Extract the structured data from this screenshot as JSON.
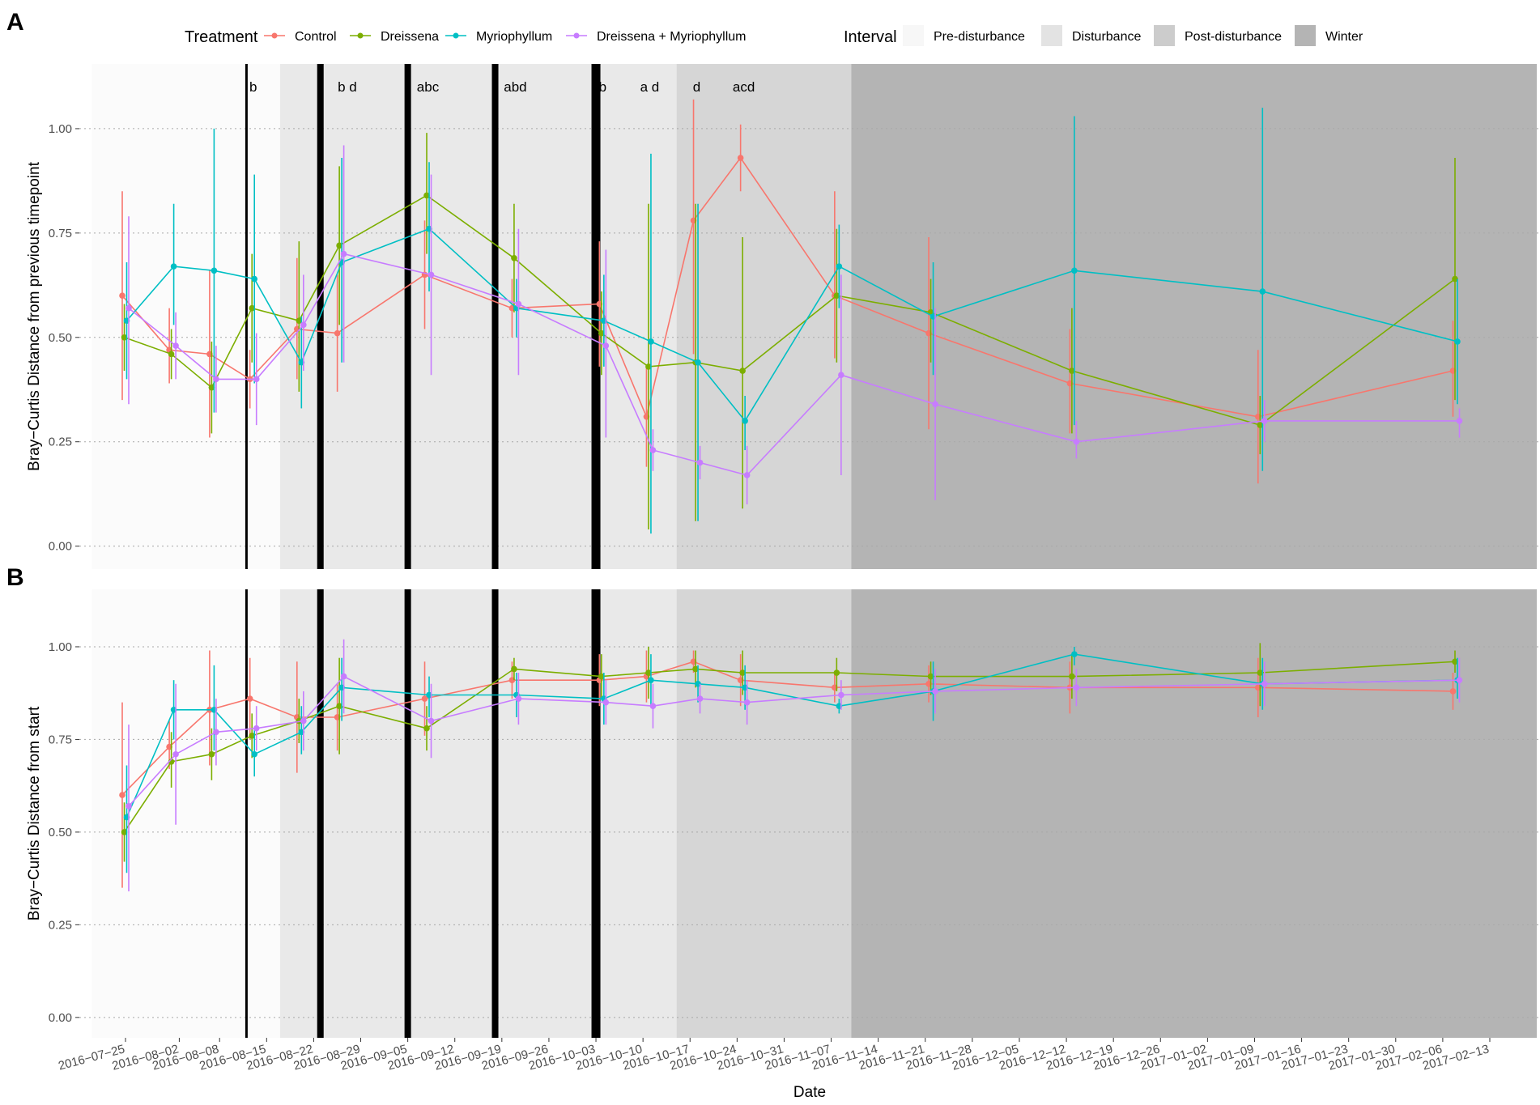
{
  "chart_data": {
    "type": "line",
    "title": "",
    "xlabel": "Date",
    "x_tick_labels": [
      "2016-07-25",
      "2016-08-02",
      "2016-08-08",
      "2016-08-15",
      "2016-08-22",
      "2016-08-29",
      "2016-09-05",
      "2016-09-12",
      "2016-09-19",
      "2016-09-26",
      "2016-10-03",
      "2016-10-10",
      "2016-10-17",
      "2016-10-24",
      "2016-10-31",
      "2016-11-07",
      "2016-11-14",
      "2016-11-21",
      "2016-11-28",
      "2016-12-05",
      "2016-12-12",
      "2016-12-19",
      "2016-12-26",
      "2017-01-02",
      "2017-01-09",
      "2017-01-16",
      "2017-01-23",
      "2017-01-30",
      "2017-02-06",
      "2017-02-13"
    ],
    "y_ticks": [
      "0.00",
      "0.25",
      "0.50",
      "0.75",
      "1.00"
    ],
    "ylim": [
      -0.055,
      1.155
    ],
    "grid": "horizontal dotted",
    "legend_placement": "top",
    "treatment_legend": {
      "title": "Treatment",
      "entries": [
        {
          "name": "Control",
          "color": "#F8766D"
        },
        {
          "name": "Dreissena",
          "color": "#7CAE00"
        },
        {
          "name": "Myriophyllum",
          "color": "#00BFC4"
        },
        {
          "name": "Dreissena + Myriophyllum",
          "color": "#C77CFF"
        }
      ]
    },
    "interval_legend": {
      "title": "Interval",
      "entries": [
        {
          "name": "Pre-disturbance",
          "color": "#F7F7F7"
        },
        {
          "name": "Disturbance",
          "color": "#E3E3E3"
        },
        {
          "name": "Post-disturbance",
          "color": "#CCCCCC"
        },
        {
          "name": "Winter",
          "color": "#B4B4B4"
        }
      ]
    },
    "intervals": [
      {
        "name": "Pre-disturbance",
        "from": "2016-07-20",
        "to": "2016-08-17",
        "color": "#FBFBFB"
      },
      {
        "name": "Disturbance",
        "from": "2016-08-17",
        "to": "2016-10-15",
        "color": "#E9E9E9"
      },
      {
        "name": "Post-disturbance",
        "from": "2016-10-15",
        "to": "2016-11-10",
        "color": "#D6D6D6"
      },
      {
        "name": "Winter",
        "from": "2016-11-10",
        "to": "2017-02-20",
        "color": "#B4B4B4"
      }
    ],
    "disturbance_events": [
      {
        "date": "2016-08-12",
        "weight": "thin"
      },
      {
        "date": "2016-08-23",
        "weight": "thick"
      },
      {
        "date": "2016-09-05",
        "weight": "thick"
      },
      {
        "date": "2016-09-18",
        "weight": "thick"
      },
      {
        "date": "2016-10-03",
        "weight": "thicker"
      }
    ],
    "panels": [
      {
        "tag": "A",
        "ylabel": "Bray−Curtis Distance from previous timepoint",
        "annotations": [
          {
            "date": "2016-08-13",
            "text": "b"
          },
          {
            "date": "2016-08-27",
            "text": "b d"
          },
          {
            "date": "2016-09-08",
            "text": "abc"
          },
          {
            "date": "2016-09-21",
            "text": "abd"
          },
          {
            "date": "2016-10-04",
            "text": "b"
          },
          {
            "date": "2016-10-11",
            "text": "a  d"
          },
          {
            "date": "2016-10-18",
            "text": "d"
          },
          {
            "date": "2016-10-25",
            "text": "acd"
          }
        ],
        "series": [
          {
            "name": "Control",
            "color": "#F8766D",
            "x": [
              "2016-07-25",
              "2016-08-01",
              "2016-08-07",
              "2016-08-13",
              "2016-08-20",
              "2016-08-26",
              "2016-09-08",
              "2016-09-21",
              "2016-10-04",
              "2016-10-11",
              "2016-10-18",
              "2016-10-25",
              "2016-11-08",
              "2016-11-22",
              "2016-12-13",
              "2017-01-10",
              "2017-02-08"
            ],
            "y": [
              0.6,
              0.47,
              0.46,
              0.4,
              0.52,
              0.51,
              0.65,
              0.57,
              0.58,
              0.31,
              0.78,
              0.93,
              0.6,
              0.51,
              0.39,
              0.31,
              0.42
            ],
            "lo": [
              0.35,
              0.39,
              0.26,
              0.33,
              0.4,
              0.37,
              0.52,
              0.5,
              0.43,
              0.19,
              0.46,
              0.85,
              0.45,
              0.28,
              0.27,
              0.15,
              0.31
            ],
            "hi": [
              0.85,
              0.57,
              0.66,
              0.47,
              0.69,
              0.65,
              0.78,
              0.64,
              0.73,
              0.43,
              1.07,
              1.01,
              0.85,
              0.74,
              0.52,
              0.47,
              0.54
            ]
          },
          {
            "name": "Dreissena",
            "color": "#7CAE00",
            "x": [
              "2016-07-25",
              "2016-08-01",
              "2016-08-07",
              "2016-08-13",
              "2016-08-20",
              "2016-08-26",
              "2016-09-08",
              "2016-09-21",
              "2016-10-04",
              "2016-10-11",
              "2016-10-18",
              "2016-10-25",
              "2016-11-08",
              "2016-11-22",
              "2016-12-13",
              "2017-01-10",
              "2017-02-08"
            ],
            "y": [
              0.5,
              0.46,
              0.38,
              0.57,
              0.54,
              0.72,
              0.84,
              0.69,
              0.51,
              0.43,
              0.44,
              0.42,
              0.6,
              0.56,
              0.42,
              0.29,
              0.64
            ],
            "lo": [
              0.42,
              0.4,
              0.27,
              0.44,
              0.37,
              0.53,
              0.7,
              0.56,
              0.41,
              0.04,
              0.06,
              0.09,
              0.44,
              0.44,
              0.27,
              0.22,
              0.35
            ],
            "hi": [
              0.58,
              0.52,
              0.49,
              0.7,
              0.73,
              0.91,
              0.99,
              0.82,
              0.61,
              0.82,
              0.82,
              0.74,
              0.76,
              0.64,
              0.57,
              0.36,
              0.93
            ]
          },
          {
            "name": "Myriophyllum",
            "color": "#00BFC4",
            "x": [
              "2016-07-25",
              "2016-08-01",
              "2016-08-07",
              "2016-08-13",
              "2016-08-20",
              "2016-08-26",
              "2016-09-08",
              "2016-09-21",
              "2016-10-04",
              "2016-10-11",
              "2016-10-18",
              "2016-10-25",
              "2016-11-08",
              "2016-11-22",
              "2016-12-13",
              "2017-01-10",
              "2017-02-08"
            ],
            "y": [
              0.54,
              0.67,
              0.66,
              0.64,
              0.44,
              0.68,
              0.76,
              0.57,
              0.54,
              0.49,
              0.44,
              0.3,
              0.67,
              0.55,
              0.66,
              0.61,
              0.49
            ],
            "lo": [
              0.4,
              0.53,
              0.32,
              0.39,
              0.33,
              0.44,
              0.61,
              0.5,
              0.43,
              0.03,
              0.06,
              0.23,
              0.57,
              0.41,
              0.29,
              0.18,
              0.34
            ],
            "hi": [
              0.68,
              0.82,
              1.0,
              0.89,
              0.55,
              0.93,
              0.92,
              0.64,
              0.65,
              0.94,
              0.82,
              0.36,
              0.77,
              0.68,
              1.03,
              1.05,
              0.64
            ]
          },
          {
            "name": "Dreissena + Myriophyllum",
            "color": "#C77CFF",
            "x": [
              "2016-07-25",
              "2016-08-01",
              "2016-08-07",
              "2016-08-13",
              "2016-08-20",
              "2016-08-26",
              "2016-09-08",
              "2016-09-21",
              "2016-10-04",
              "2016-10-11",
              "2016-10-18",
              "2016-10-25",
              "2016-11-08",
              "2016-11-22",
              "2016-12-13",
              "2017-01-10",
              "2017-02-08"
            ],
            "y": [
              0.57,
              0.48,
              0.4,
              0.4,
              0.53,
              0.7,
              0.65,
              0.58,
              0.48,
              0.23,
              0.2,
              0.17,
              0.41,
              0.34,
              0.25,
              0.3,
              0.3
            ],
            "lo": [
              0.34,
              0.4,
              0.32,
              0.29,
              0.42,
              0.44,
              0.41,
              0.41,
              0.26,
              0.18,
              0.16,
              0.1,
              0.17,
              0.11,
              0.21,
              0.25,
              0.26
            ],
            "hi": [
              0.79,
              0.56,
              0.48,
              0.51,
              0.65,
              0.96,
              0.89,
              0.76,
              0.71,
              0.28,
              0.24,
              0.24,
              0.65,
              0.57,
              0.3,
              0.35,
              0.33
            ]
          }
        ]
      },
      {
        "tag": "B",
        "ylabel": "Bray−Curtis Distance from start",
        "annotations": [],
        "series": [
          {
            "name": "Control",
            "color": "#F8766D",
            "x": [
              "2016-07-25",
              "2016-08-01",
              "2016-08-07",
              "2016-08-13",
              "2016-08-20",
              "2016-08-26",
              "2016-09-08",
              "2016-09-21",
              "2016-10-04",
              "2016-10-11",
              "2016-10-18",
              "2016-10-25",
              "2016-11-08",
              "2016-11-22",
              "2016-12-13",
              "2017-01-10",
              "2017-02-08"
            ],
            "y": [
              0.6,
              0.73,
              0.83,
              0.86,
              0.81,
              0.81,
              0.86,
              0.91,
              0.91,
              0.92,
              0.96,
              0.91,
              0.89,
              0.9,
              0.89,
              0.89,
              0.88
            ],
            "lo": [
              0.35,
              0.67,
              0.68,
              0.75,
              0.66,
              0.72,
              0.76,
              0.86,
              0.84,
              0.85,
              0.93,
              0.84,
              0.85,
              0.85,
              0.82,
              0.81,
              0.83
            ],
            "hi": [
              0.85,
              0.8,
              0.99,
              0.97,
              0.96,
              0.9,
              0.96,
              0.96,
              0.98,
              0.99,
              0.99,
              0.98,
              0.93,
              0.95,
              0.96,
              0.97,
              0.93
            ]
          },
          {
            "name": "Dreissena",
            "color": "#7CAE00",
            "x": [
              "2016-07-25",
              "2016-08-01",
              "2016-08-07",
              "2016-08-13",
              "2016-08-20",
              "2016-08-26",
              "2016-09-08",
              "2016-09-21",
              "2016-10-04",
              "2016-10-11",
              "2016-10-18",
              "2016-10-25",
              "2016-11-08",
              "2016-11-22",
              "2016-12-13",
              "2017-01-10",
              "2017-02-08"
            ],
            "y": [
              0.5,
              0.69,
              0.71,
              0.76,
              0.8,
              0.84,
              0.78,
              0.94,
              0.92,
              0.93,
              0.94,
              0.93,
              0.93,
              0.92,
              0.92,
              0.93,
              0.96
            ],
            "lo": [
              0.42,
              0.62,
              0.64,
              0.7,
              0.74,
              0.71,
              0.72,
              0.91,
              0.86,
              0.86,
              0.89,
              0.87,
              0.88,
              0.87,
              0.86,
              0.84,
              0.93
            ],
            "hi": [
              0.58,
              0.77,
              0.78,
              0.82,
              0.86,
              0.97,
              0.84,
              0.97,
              0.98,
              1.0,
              0.99,
              0.99,
              0.97,
              0.96,
              0.98,
              1.01,
              0.99
            ]
          },
          {
            "name": "Myriophyllum",
            "color": "#00BFC4",
            "x": [
              "2016-07-25",
              "2016-08-01",
              "2016-08-07",
              "2016-08-13",
              "2016-08-20",
              "2016-08-26",
              "2016-09-08",
              "2016-09-21",
              "2016-10-04",
              "2016-10-11",
              "2016-10-18",
              "2016-10-25",
              "2016-11-08",
              "2016-11-22",
              "2016-12-13",
              "2017-01-10",
              "2017-02-08"
            ],
            "y": [
              0.54,
              0.83,
              0.83,
              0.71,
              0.77,
              0.89,
              0.87,
              0.87,
              0.86,
              0.91,
              0.9,
              0.89,
              0.84,
              0.88,
              0.98,
              0.9,
              0.91
            ],
            "lo": [
              0.39,
              0.75,
              0.72,
              0.65,
              0.71,
              0.8,
              0.81,
              0.81,
              0.79,
              0.84,
              0.85,
              0.83,
              0.82,
              0.8,
              0.95,
              0.83,
              0.86
            ],
            "hi": [
              0.68,
              0.91,
              0.95,
              0.78,
              0.84,
              0.97,
              0.92,
              0.93,
              0.93,
              0.98,
              0.95,
              0.95,
              0.86,
              0.96,
              1.0,
              0.97,
              0.97
            ]
          },
          {
            "name": "Dreissena + Myriophyllum",
            "color": "#C77CFF",
            "x": [
              "2016-07-25",
              "2016-08-01",
              "2016-08-07",
              "2016-08-13",
              "2016-08-20",
              "2016-08-26",
              "2016-09-08",
              "2016-09-21",
              "2016-10-04",
              "2016-10-11",
              "2016-10-18",
              "2016-10-25",
              "2016-11-08",
              "2016-11-22",
              "2016-12-13",
              "2017-01-10",
              "2017-02-08"
            ],
            "y": [
              0.57,
              0.71,
              0.77,
              0.78,
              0.8,
              0.92,
              0.8,
              0.86,
              0.85,
              0.84,
              0.86,
              0.85,
              0.87,
              0.88,
              0.89,
              0.9,
              0.91
            ],
            "lo": [
              0.34,
              0.52,
              0.68,
              0.72,
              0.72,
              0.82,
              0.7,
              0.79,
              0.79,
              0.78,
              0.82,
              0.79,
              0.83,
              0.82,
              0.84,
              0.84,
              0.85
            ],
            "hi": [
              0.79,
              0.9,
              0.86,
              0.84,
              0.88,
              1.02,
              0.9,
              0.93,
              0.91,
              0.9,
              0.9,
              0.91,
              0.91,
              0.94,
              0.94,
              0.96,
              0.97
            ]
          }
        ]
      }
    ]
  }
}
